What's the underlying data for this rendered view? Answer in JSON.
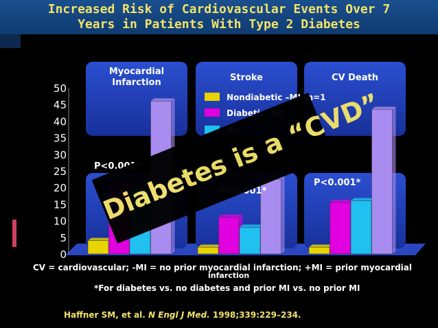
{
  "title": {
    "line1": "Increased Risk of Cardiovascular Events Over 7",
    "line2": "Years in Patients With Type 2 Diabetes"
  },
  "colors": {
    "nondiabetic_noMI": "#e8d400",
    "diabetic_noMI": "#e000e0",
    "nondiabetic_MI": "#20c0f0",
    "diabetic_MI": "#a98cf0",
    "panel": "#1e3db0"
  },
  "chart_data": {
    "type": "bar",
    "categories": [
      "Myocardial Infarction",
      "Stroke",
      "CV Death"
    ],
    "panel_labels": [
      "Myocardial\nInfarction",
      "Stroke",
      "CV Death"
    ],
    "series": [
      {
        "name": "Nondiabetic –MI (n=1",
        "values": [
          4.0,
          2.0,
          2.0
        ]
      },
      {
        "name": "Diabetic –MI",
        "values": [
          21.0,
          11.0,
          15.5
        ]
      },
      {
        "name": "No",
        "values": [
          19.5,
          8.0,
          16.0
        ]
      },
      {
        "name": "",
        "values": [
          46.0,
          22.5,
          43.5
        ]
      }
    ],
    "p_values": [
      "P<0.001*",
      "P<0.001*",
      "P<0.001*"
    ],
    "yticks": [
      0,
      5,
      10,
      15,
      20,
      25,
      30,
      35,
      40,
      45,
      50
    ],
    "ylim": [
      0,
      50
    ]
  },
  "overlay_text": "Diabetes is a “CVD”",
  "footnotes": {
    "definitions": "CV = cardiovascular; -MI = no prior myocardial infarction; +MI = prior myocardial",
    "definitions_cont": "infarction",
    "asterisk": "*For diabetes vs. no diabetes and prior MI vs. no prior MI",
    "ref_prefix": "Haffner SM, et al.",
    "ref_journal": "N Engl J Med.",
    "ref_suffix": "1998;339:229–234."
  }
}
